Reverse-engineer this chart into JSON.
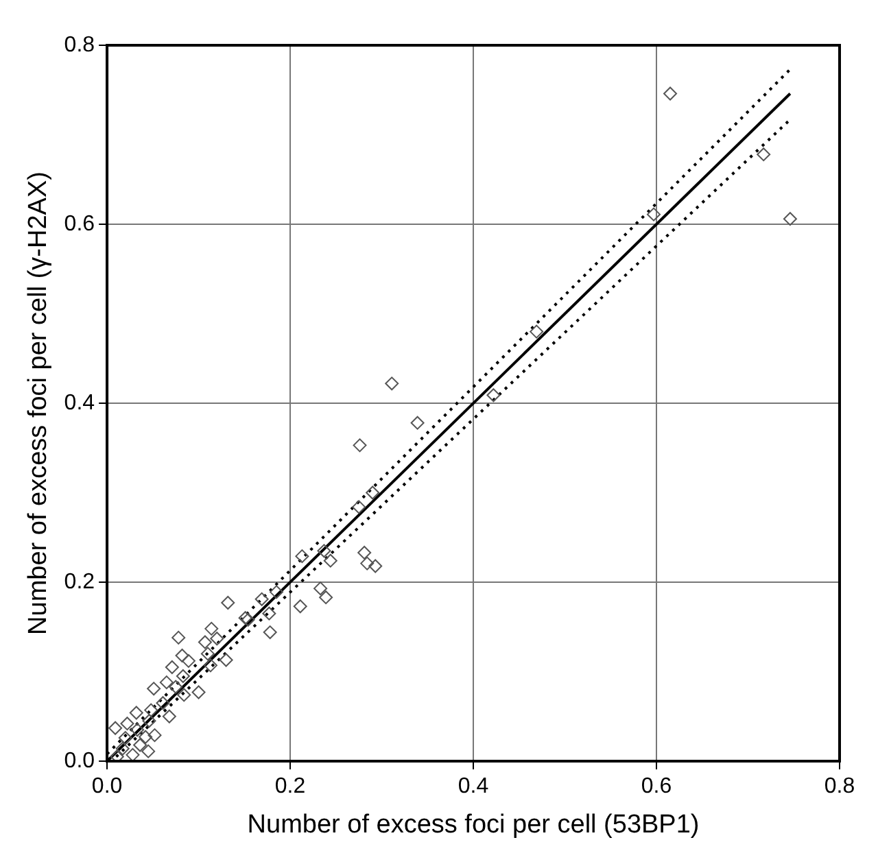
{
  "chart_data": {
    "type": "scatter",
    "xlabel": "Number of excess foci per cell (53BP1)",
    "ylabel": "Number of excess foci per cell (γ-H2AX)",
    "xlim": [
      0,
      0.8
    ],
    "ylim": [
      0,
      0.8
    ],
    "xticks": [
      {
        "value": 0,
        "label": "0.0"
      },
      {
        "value": 0.2,
        "label": "0.2"
      },
      {
        "value": 0.4,
        "label": "0.4"
      },
      {
        "value": 0.6,
        "label": "0.6"
      },
      {
        "value": 0.8,
        "label": "0.8"
      }
    ],
    "yticks": [
      {
        "value": 0,
        "label": "0.0"
      },
      {
        "value": 0.2,
        "label": "0.2"
      },
      {
        "value": 0.4,
        "label": "0.4"
      },
      {
        "value": 0.6,
        "label": "0.6"
      },
      {
        "value": 0.8,
        "label": "0.8"
      }
    ],
    "grid": true,
    "legend": false,
    "series": [
      {
        "type": "scatter",
        "color": "#555555",
        "marker": "diamond",
        "x": [
          0.615,
          0.717,
          0.746,
          0.597,
          0.469,
          0.422,
          0.311,
          0.339,
          0.276,
          0.29,
          0.275,
          0.213,
          0.237,
          0.244,
          0.281,
          0.284,
          0.293,
          0.233,
          0.239,
          0.211,
          0.185,
          0.169,
          0.177,
          0.178,
          0.154,
          0.132,
          0.151,
          0.078,
          0.114,
          0.107,
          0.12,
          0.082,
          0.089,
          0.071,
          0.11,
          0.13,
          0.113,
          0.083,
          0.065,
          0.075,
          0.1,
          0.051,
          0.084,
          0.061,
          0.068,
          0.032,
          0.048,
          0.046,
          0.022,
          0.009,
          0.033,
          0.042,
          0.052,
          0.02,
          0.036,
          0.045,
          0.017,
          0.028,
          0.011
        ],
        "values": [
          0.746,
          0.678,
          0.606,
          0.611,
          0.48,
          0.409,
          0.422,
          0.378,
          0.353,
          0.3,
          0.284,
          0.229,
          0.235,
          0.224,
          0.233,
          0.221,
          0.218,
          0.193,
          0.183,
          0.173,
          0.189,
          0.181,
          0.165,
          0.144,
          0.158,
          0.177,
          0.16,
          0.138,
          0.148,
          0.133,
          0.137,
          0.118,
          0.112,
          0.105,
          0.12,
          0.113,
          0.107,
          0.095,
          0.088,
          0.083,
          0.077,
          0.081,
          0.074,
          0.065,
          0.05,
          0.054,
          0.057,
          0.045,
          0.042,
          0.037,
          0.035,
          0.027,
          0.029,
          0.026,
          0.018,
          0.011,
          0.014,
          0.007,
          0.005
        ]
      },
      {
        "type": "line",
        "color": "#000000",
        "line_style": "solid",
        "marker": "none",
        "x": [
          0,
          0.746
        ],
        "values": [
          0,
          0.746
        ]
      },
      {
        "type": "line",
        "color": "#000000",
        "line_style": "dotted",
        "marker": "none",
        "x": [
          0,
          0.745
        ],
        "values": [
          0.008,
          0.772
        ]
      },
      {
        "type": "line",
        "color": "#000000",
        "line_style": "dotted",
        "marker": "none",
        "x": [
          0.01,
          0.745
        ],
        "values": [
          0.005,
          0.716
        ]
      }
    ]
  }
}
